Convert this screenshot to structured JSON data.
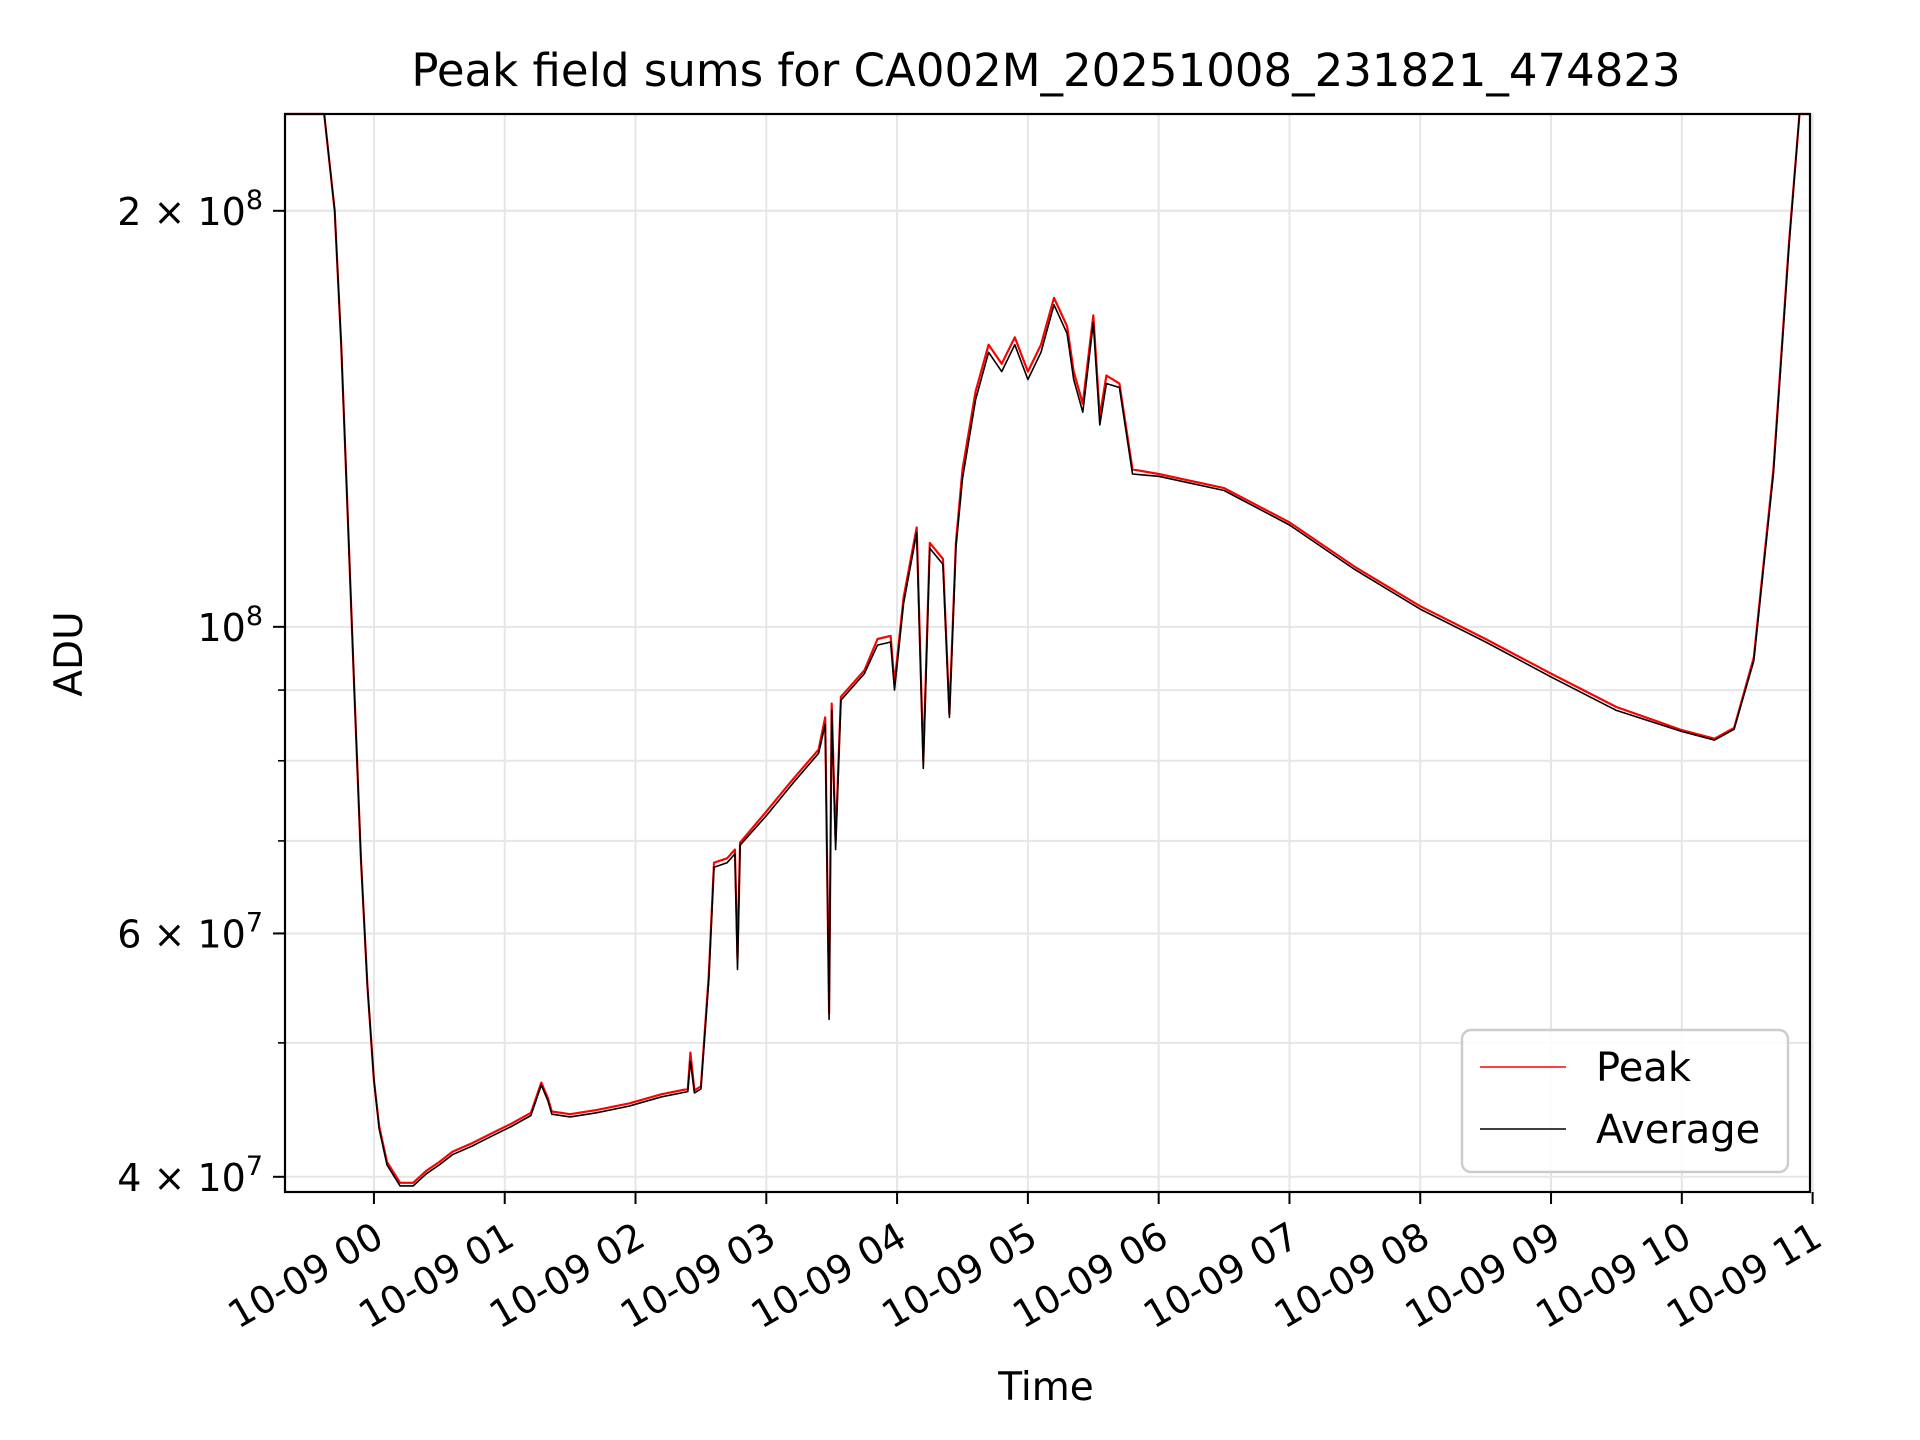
{
  "chart_data": {
    "type": "line",
    "title": "Peak field sums for CA002M_20251008_231821_474823",
    "xlabel": "Time",
    "ylabel": "ADU",
    "yscale": "log",
    "xlim_hours": [
      -0.68,
      10.98
    ],
    "ylim": [
      39000000,
      235000000
    ],
    "x_ticks": [
      {
        "hour": 0,
        "label": "10-09 00"
      },
      {
        "hour": 1,
        "label": "10-09 01"
      },
      {
        "hour": 2,
        "label": "10-09 02"
      },
      {
        "hour": 3,
        "label": "10-09 03"
      },
      {
        "hour": 4,
        "label": "10-09 04"
      },
      {
        "hour": 5,
        "label": "10-09 05"
      },
      {
        "hour": 6,
        "label": "10-09 06"
      },
      {
        "hour": 7,
        "label": "10-09 07"
      },
      {
        "hour": 8,
        "label": "10-09 08"
      },
      {
        "hour": 9,
        "label": "10-09 09"
      },
      {
        "hour": 10,
        "label": "10-09 10"
      },
      {
        "hour": 11,
        "label": "10-09 11"
      }
    ],
    "y_major_ticks": [
      {
        "value": 40000000,
        "mantissa": "4",
        "times": "×",
        "base": "10",
        "exp": "7"
      },
      {
        "value": 60000000,
        "mantissa": "6",
        "times": "×",
        "base": "10",
        "exp": "7"
      },
      {
        "value": 100000000,
        "mantissa": "",
        "times": "",
        "base": "10",
        "exp": "8"
      },
      {
        "value": 200000000,
        "mantissa": "2",
        "times": "×",
        "base": "10",
        "exp": "8"
      }
    ],
    "y_minor_ticks": [
      50000000,
      60000000,
      70000000,
      80000000,
      90000000,
      200000000
    ],
    "grid": true,
    "legend_position": "lower-right",
    "series": [
      {
        "name": "Peak",
        "color": "#ff0000",
        "points": [
          [
            -0.68,
            235000000
          ],
          [
            -0.38,
            235000000
          ],
          [
            -0.3,
            200000000
          ],
          [
            -0.25,
            160000000
          ],
          [
            -0.2,
            120000000
          ],
          [
            -0.15,
            90000000
          ],
          [
            -0.1,
            68000000
          ],
          [
            -0.05,
            55000000
          ],
          [
            0.0,
            47000000
          ],
          [
            0.04,
            43500000
          ],
          [
            0.1,
            41000000
          ],
          [
            0.2,
            39600000
          ],
          [
            0.3,
            39600000
          ],
          [
            0.4,
            40400000
          ],
          [
            0.5,
            41000000
          ],
          [
            0.6,
            41700000
          ],
          [
            0.75,
            42300000
          ],
          [
            0.9,
            43000000
          ],
          [
            1.05,
            43700000
          ],
          [
            1.2,
            44500000
          ],
          [
            1.28,
            46800000
          ],
          [
            1.33,
            45600000
          ],
          [
            1.36,
            44600000
          ],
          [
            1.5,
            44400000
          ],
          [
            1.7,
            44700000
          ],
          [
            1.95,
            45200000
          ],
          [
            2.2,
            45900000
          ],
          [
            2.4,
            46300000
          ],
          [
            2.42,
            49200000
          ],
          [
            2.45,
            46200000
          ],
          [
            2.5,
            46500000
          ],
          [
            2.56,
            56000000
          ],
          [
            2.6,
            67500000
          ],
          [
            2.7,
            68000000
          ],
          [
            2.76,
            69000000
          ],
          [
            2.78,
            57500000
          ],
          [
            2.8,
            69800000
          ],
          [
            3.0,
            73500000
          ],
          [
            3.2,
            77500000
          ],
          [
            3.4,
            81500000
          ],
          [
            3.45,
            86000000
          ],
          [
            3.48,
            52500000
          ],
          [
            3.5,
            88000000
          ],
          [
            3.53,
            70000000
          ],
          [
            3.57,
            89000000
          ],
          [
            3.75,
            93000000
          ],
          [
            3.85,
            98000000
          ],
          [
            3.95,
            98500000
          ],
          [
            3.98,
            91000000
          ],
          [
            4.05,
            105000000
          ],
          [
            4.15,
            118000000
          ],
          [
            4.2,
            80000000
          ],
          [
            4.25,
            115000000
          ],
          [
            4.35,
            112000000
          ],
          [
            4.4,
            86500000
          ],
          [
            4.45,
            115000000
          ],
          [
            4.5,
            130000000
          ],
          [
            4.6,
            148000000
          ],
          [
            4.7,
            160000000
          ],
          [
            4.8,
            155000000
          ],
          [
            4.9,
            162000000
          ],
          [
            5.0,
            153000000
          ],
          [
            5.1,
            160000000
          ],
          [
            5.2,
            173000000
          ],
          [
            5.3,
            165000000
          ],
          [
            5.35,
            153000000
          ],
          [
            5.42,
            145000000
          ],
          [
            5.5,
            168000000
          ],
          [
            5.55,
            142000000
          ],
          [
            5.6,
            152000000
          ],
          [
            5.7,
            150000000
          ],
          [
            5.8,
            130000000
          ],
          [
            6.0,
            129000000
          ],
          [
            6.5,
            126000000
          ],
          [
            7.0,
            119000000
          ],
          [
            7.5,
            110500000
          ],
          [
            8.0,
            103500000
          ],
          [
            8.5,
            98000000
          ],
          [
            9.0,
            92500000
          ],
          [
            9.5,
            87500000
          ],
          [
            10.0,
            84200000
          ],
          [
            10.25,
            83000000
          ],
          [
            10.4,
            84500000
          ],
          [
            10.55,
            95000000
          ],
          [
            10.7,
            130000000
          ],
          [
            10.82,
            190000000
          ],
          [
            10.9,
            235000000
          ],
          [
            10.98,
            235000000
          ]
        ]
      },
      {
        "name": "Average",
        "color": "#000000",
        "points": [
          [
            -0.68,
            235000000
          ],
          [
            -0.38,
            235000000
          ],
          [
            -0.3,
            200000000
          ],
          [
            -0.25,
            160000000
          ],
          [
            -0.2,
            120000000
          ],
          [
            -0.15,
            90000000
          ],
          [
            -0.1,
            68000000
          ],
          [
            -0.05,
            55000000
          ],
          [
            0.0,
            47000000
          ],
          [
            0.04,
            43300000
          ],
          [
            0.1,
            40800000
          ],
          [
            0.2,
            39400000
          ],
          [
            0.3,
            39400000
          ],
          [
            0.4,
            40200000
          ],
          [
            0.5,
            40800000
          ],
          [
            0.6,
            41500000
          ],
          [
            0.75,
            42100000
          ],
          [
            0.9,
            42800000
          ],
          [
            1.05,
            43500000
          ],
          [
            1.2,
            44300000
          ],
          [
            1.28,
            46600000
          ],
          [
            1.33,
            45400000
          ],
          [
            1.36,
            44400000
          ],
          [
            1.5,
            44200000
          ],
          [
            1.7,
            44500000
          ],
          [
            1.95,
            45000000
          ],
          [
            2.2,
            45700000
          ],
          [
            2.4,
            46100000
          ],
          [
            2.42,
            48500000
          ],
          [
            2.45,
            46000000
          ],
          [
            2.5,
            46300000
          ],
          [
            2.56,
            55500000
          ],
          [
            2.6,
            67000000
          ],
          [
            2.7,
            67500000
          ],
          [
            2.76,
            68500000
          ],
          [
            2.78,
            56500000
          ],
          [
            2.8,
            69500000
          ],
          [
            3.0,
            73000000
          ],
          [
            3.2,
            77000000
          ],
          [
            3.4,
            81000000
          ],
          [
            3.45,
            85000000
          ],
          [
            3.48,
            52000000
          ],
          [
            3.5,
            87000000
          ],
          [
            3.53,
            69000000
          ],
          [
            3.57,
            88500000
          ],
          [
            3.75,
            92500000
          ],
          [
            3.85,
            97000000
          ],
          [
            3.95,
            97500000
          ],
          [
            3.98,
            90000000
          ],
          [
            4.05,
            104000000
          ],
          [
            4.15,
            117000000
          ],
          [
            4.2,
            79000000
          ],
          [
            4.25,
            114000000
          ],
          [
            4.35,
            111000000
          ],
          [
            4.4,
            86000000
          ],
          [
            4.45,
            114000000
          ],
          [
            4.5,
            128000000
          ],
          [
            4.6,
            146000000
          ],
          [
            4.7,
            158000000
          ],
          [
            4.8,
            153000000
          ],
          [
            4.9,
            160000000
          ],
          [
            5.0,
            151000000
          ],
          [
            5.1,
            158000000
          ],
          [
            5.2,
            171000000
          ],
          [
            5.3,
            163000000
          ],
          [
            5.35,
            151000000
          ],
          [
            5.42,
            143000000
          ],
          [
            5.5,
            166000000
          ],
          [
            5.55,
            140000000
          ],
          [
            5.6,
            150000000
          ],
          [
            5.7,
            149000000
          ],
          [
            5.8,
            129000000
          ],
          [
            6.0,
            128500000
          ],
          [
            6.5,
            125500000
          ],
          [
            7.0,
            118500000
          ],
          [
            7.5,
            110000000
          ],
          [
            8.0,
            103000000
          ],
          [
            8.5,
            97500000
          ],
          [
            9.0,
            92000000
          ],
          [
            9.5,
            87000000
          ],
          [
            10.0,
            84000000
          ],
          [
            10.25,
            82800000
          ],
          [
            10.4,
            84300000
          ],
          [
            10.55,
            94500000
          ],
          [
            10.7,
            129000000
          ],
          [
            10.82,
            189000000
          ],
          [
            10.9,
            235000000
          ],
          [
            10.98,
            235000000
          ]
        ]
      }
    ]
  }
}
